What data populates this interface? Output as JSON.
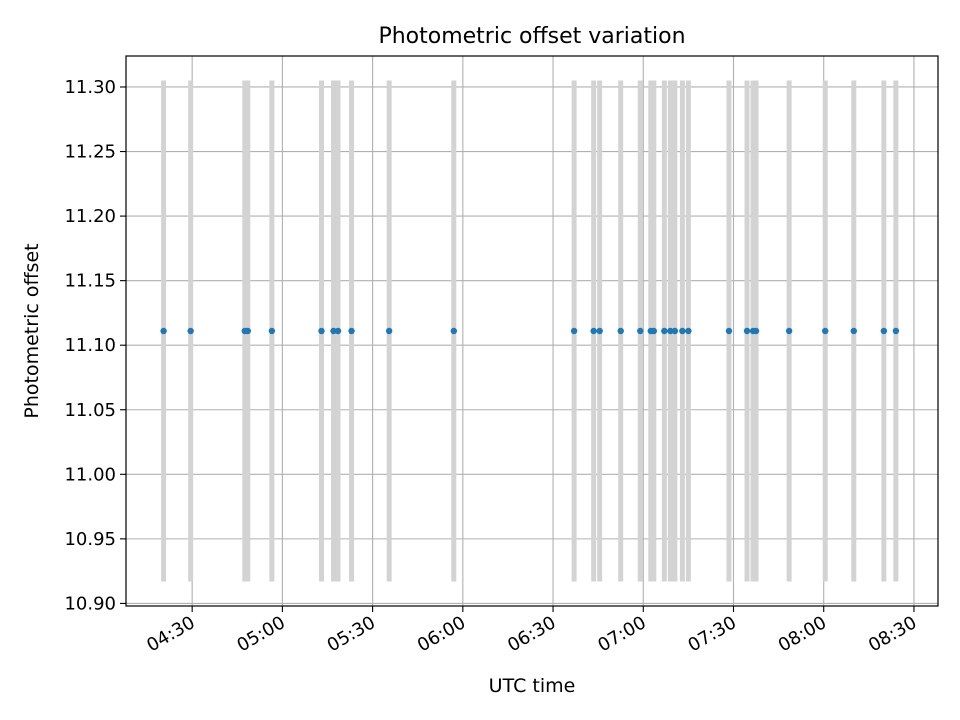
{
  "chart_data": {
    "type": "scatter",
    "title": "Photometric offset variation",
    "xlabel": "UTC time",
    "ylabel": "Photometric offset",
    "grid": true,
    "x_axis_type": "time",
    "xlim": [
      "04:08",
      "08:38"
    ],
    "ylim": [
      10.898,
      11.324
    ],
    "x_ticks": [
      "04:30",
      "05:00",
      "05:30",
      "06:00",
      "06:30",
      "07:00",
      "07:30",
      "08:00",
      "08:30"
    ],
    "y_ticks": [
      "10.90",
      "10.95",
      "11.00",
      "11.05",
      "11.10",
      "11.15",
      "11.20",
      "11.25",
      "11.30"
    ],
    "colors": {
      "points": "#1f77b4",
      "error_bars": "#d3d3d3",
      "grid": "#b0b0b0"
    },
    "error_bars": {
      "lower": 10.917,
      "upper": 11.305
    },
    "series": [
      {
        "x": [
          "04:20:30",
          "04:29:30",
          "04:47:30",
          "04:48:30",
          "04:56:30",
          "05:13:00",
          "05:17:00",
          "05:18:30",
          "05:23:00",
          "05:35:30",
          "05:57:00",
          "06:37:00",
          "06:43:30",
          "06:45:30",
          "06:52:30",
          "06:59:00",
          "07:02:30",
          "07:03:30",
          "07:07:00",
          "07:09:00",
          "07:10:30",
          "07:13:00",
          "07:15:00",
          "07:28:30",
          "07:34:30",
          "07:36:30",
          "07:37:30",
          "07:48:30",
          "08:00:30",
          "08:10:00",
          "08:20:00",
          "08:24:00"
        ],
        "y": [
          11.111,
          11.111,
          11.111,
          11.111,
          11.111,
          11.111,
          11.111,
          11.111,
          11.111,
          11.111,
          11.111,
          11.111,
          11.111,
          11.111,
          11.111,
          11.111,
          11.111,
          11.111,
          11.111,
          11.111,
          11.111,
          11.111,
          11.111,
          11.111,
          11.111,
          11.111,
          11.111,
          11.111,
          11.111,
          11.111,
          11.111,
          11.111
        ]
      }
    ]
  }
}
